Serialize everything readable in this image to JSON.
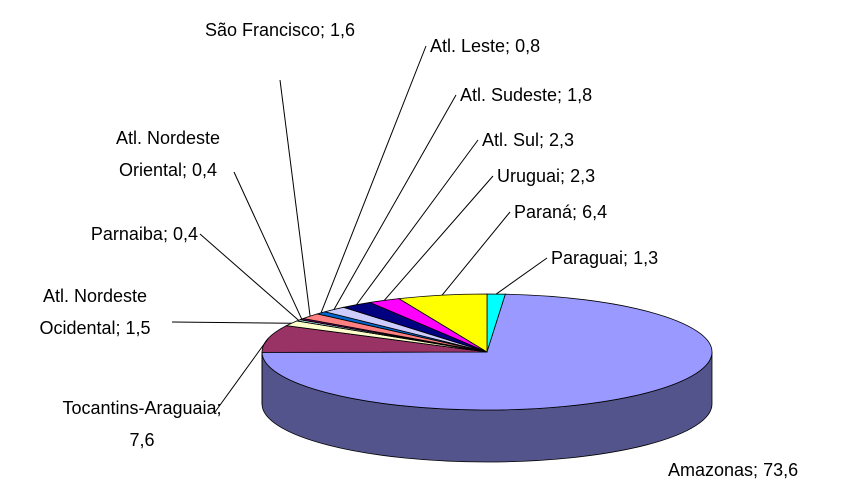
{
  "chart_data": {
    "type": "pie",
    "categories": [
      "Paraguai;",
      "Amazonas;",
      "Tocantins-Araguaia;",
      "Atl. Nordeste Ocidental;",
      "Parnaiba;",
      "Atl. Nordeste Oriental;",
      "São Francisco;",
      "Atl. Leste;",
      "Atl. Sudeste;",
      "Atl. Sul;",
      "Uruguai;",
      "Paraná;"
    ],
    "values": [
      1.3,
      73.6,
      7.6,
      1.5,
      0.4,
      0.4,
      1.6,
      0.8,
      1.8,
      2.3,
      2.3,
      6.4
    ],
    "value_labels": [
      "1,3",
      "73,6",
      "7,6",
      "1,5",
      "0,4",
      "0,4",
      "1,6",
      "0,8",
      "1,8",
      "2,3",
      "2,3",
      "6,4"
    ],
    "colors": [
      "#00ffff",
      "#9999ff",
      "#993366",
      "#ffffcc",
      "#ccffff",
      "#660066",
      "#ff8080",
      "#0066cc",
      "#ccccff",
      "#000080",
      "#ff00ff",
      "#ffff00"
    ]
  }
}
